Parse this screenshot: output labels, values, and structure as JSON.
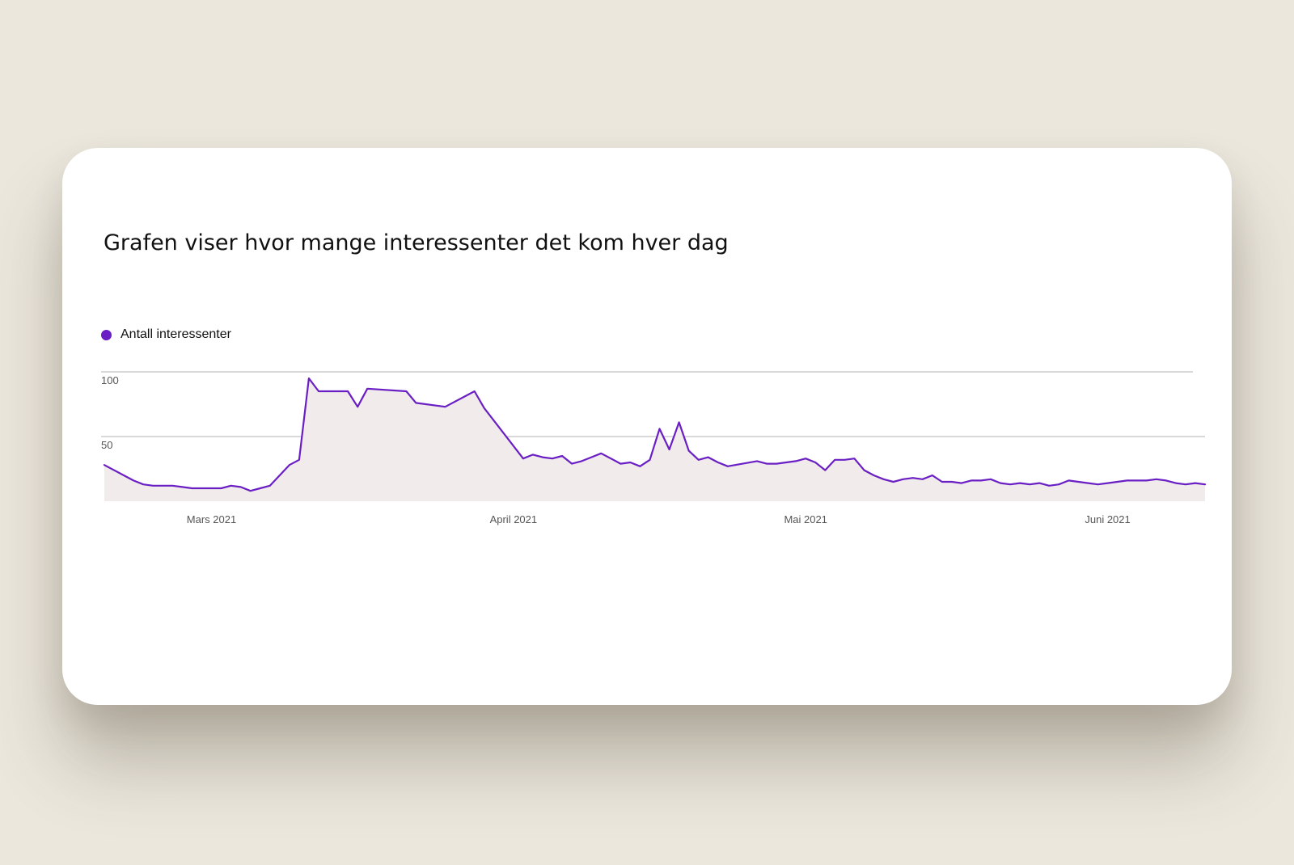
{
  "colors": {
    "series": "#6a1fc4",
    "area": "#f1ebec",
    "grid": "#9a9a9a"
  },
  "chart_data": {
    "type": "area",
    "title": "Grafen viser hvor mange interessenter det kom hver dag",
    "legend": [
      "Antall interessenter"
    ],
    "legend_position": "top-left",
    "grid": true,
    "ylim": [
      0,
      100
    ],
    "y_ticks": [
      {
        "value": 50,
        "label": "50"
      },
      {
        "value": 100,
        "label": "100"
      }
    ],
    "x_ticks": [
      {
        "x": "2021-03-01",
        "label": "Mars 2021"
      },
      {
        "x": "2021-04-01",
        "label": "April 2021"
      },
      {
        "x": "2021-05-01",
        "label": "Mai 2021"
      },
      {
        "x": "2021-06-01",
        "label": "Juni 2021"
      }
    ],
    "series": [
      {
        "name": "Antall interessenter",
        "x": [
          "2021-02-18",
          "2021-02-21",
          "2021-02-22",
          "2021-02-23",
          "2021-02-24",
          "2021-02-25",
          "2021-02-26",
          "2021-02-27",
          "2021-02-28",
          "2021-03-01",
          "2021-03-02",
          "2021-03-03",
          "2021-03-04",
          "2021-03-05",
          "2021-03-06",
          "2021-03-07",
          "2021-03-09",
          "2021-03-10",
          "2021-03-11",
          "2021-03-12",
          "2021-03-15",
          "2021-03-16",
          "2021-03-17",
          "2021-03-21",
          "2021-03-22",
          "2021-03-25",
          "2021-03-28",
          "2021-03-29",
          "2021-04-02",
          "2021-04-03",
          "2021-04-04",
          "2021-04-05",
          "2021-04-06",
          "2021-04-07",
          "2021-04-08",
          "2021-04-09",
          "2021-04-10",
          "2021-04-12",
          "2021-04-13",
          "2021-04-14",
          "2021-04-15",
          "2021-04-16",
          "2021-04-17",
          "2021-04-18",
          "2021-04-19",
          "2021-04-20",
          "2021-04-21",
          "2021-04-22",
          "2021-04-23",
          "2021-04-26",
          "2021-04-27",
          "2021-04-28",
          "2021-04-29",
          "2021-04-30",
          "2021-05-01",
          "2021-05-02",
          "2021-05-03",
          "2021-05-04",
          "2021-05-05",
          "2021-05-06",
          "2021-05-07",
          "2021-05-08",
          "2021-05-09",
          "2021-05-10",
          "2021-05-11",
          "2021-05-12",
          "2021-05-13",
          "2021-05-14",
          "2021-05-15",
          "2021-05-16",
          "2021-05-17",
          "2021-05-18",
          "2021-05-19",
          "2021-05-20",
          "2021-05-21",
          "2021-05-22",
          "2021-05-23",
          "2021-05-24",
          "2021-05-25",
          "2021-05-26",
          "2021-05-27",
          "2021-05-28",
          "2021-05-29",
          "2021-05-30",
          "2021-05-31",
          "2021-06-01",
          "2021-06-02",
          "2021-06-03",
          "2021-06-04",
          "2021-06-05",
          "2021-06-06",
          "2021-06-07",
          "2021-06-08",
          "2021-06-09",
          "2021-06-10",
          "2021-06-11"
        ],
        "values": [
          28,
          16,
          13,
          12,
          12,
          12,
          11,
          10,
          10,
          10,
          10,
          12,
          11,
          8,
          10,
          12,
          28,
          32,
          95,
          85,
          85,
          73,
          87,
          85,
          76,
          73,
          85,
          72,
          33,
          36,
          34,
          33,
          35,
          29,
          31,
          34,
          37,
          29,
          30,
          27,
          32,
          56,
          40,
          61,
          39,
          32,
          34,
          30,
          27,
          31,
          29,
          29,
          30,
          31,
          33,
          30,
          24,
          32,
          32,
          33,
          24,
          20,
          17,
          15,
          17,
          18,
          17,
          20,
          15,
          15,
          14,
          16,
          16,
          17,
          14,
          13,
          14,
          13,
          14,
          12,
          13,
          16,
          15,
          14,
          13,
          14,
          15,
          16,
          16,
          16,
          17,
          16,
          14,
          13,
          14,
          13
        ]
      }
    ]
  }
}
